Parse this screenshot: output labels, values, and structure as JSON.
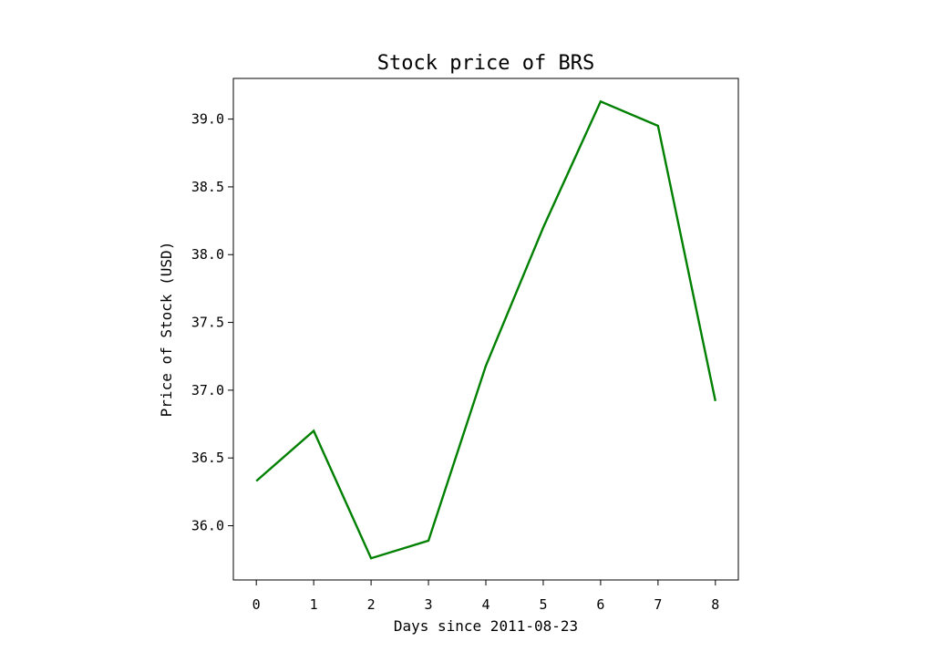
{
  "chart_data": {
    "type": "line",
    "title": "Stock price of BRS",
    "xlabel": "Days since 2011-08-23",
    "ylabel": "Price of Stock (USD)",
    "xlim": [
      -0.4,
      8.4
    ],
    "ylim": [
      35.6,
      39.3
    ],
    "x_ticks": [
      0,
      1,
      2,
      3,
      4,
      5,
      6,
      7,
      8
    ],
    "x_tick_labels": [
      "0",
      "1",
      "2",
      "3",
      "4",
      "5",
      "6",
      "7",
      "8"
    ],
    "y_ticks": [
      36.0,
      36.5,
      37.0,
      37.5,
      38.0,
      38.5,
      39.0
    ],
    "y_tick_labels": [
      "36.0",
      "36.5",
      "37.0",
      "37.5",
      "38.0",
      "38.5",
      "39.0"
    ],
    "grid": false,
    "series": [
      {
        "color": "#008000",
        "x": [
          0,
          1,
          2,
          3,
          4,
          5,
          6,
          7,
          8
        ],
        "values": [
          36.33,
          36.7,
          35.76,
          35.89,
          37.18,
          38.2,
          39.13,
          38.95,
          36.92
        ]
      }
    ]
  }
}
